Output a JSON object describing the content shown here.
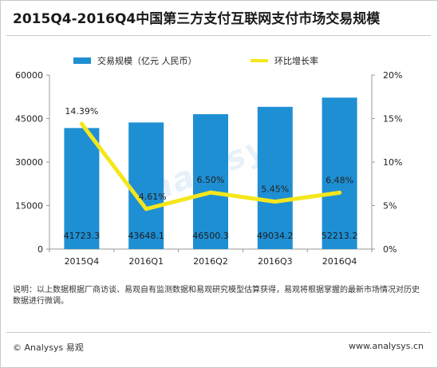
{
  "title": "2015Q4-2016Q4中国第三方支付互联网支付市场交易规模",
  "note": "说明：以上数据根据厂商访谈、易观自有监测数据和易观研究模型估算获得，易观将根据掌握的最新市场情况对历史数据进行微调。",
  "footer": {
    "left": "© Analysys 易观",
    "right": "www.analysys.cn"
  },
  "watermark": "Analysys",
  "colors": {
    "bar": "#1f8fd4",
    "line": "#f5e61c",
    "axis": "#999999",
    "text": "#222222"
  },
  "chart_data": {
    "type": "bar",
    "categories": [
      "2015Q4",
      "2016Q1",
      "2016Q2",
      "2016Q3",
      "2016Q4"
    ],
    "series": [
      {
        "name": "交易规模（亿元 人民币）",
        "type": "bar",
        "axis": "left",
        "values": [
          41723.3,
          43648.1,
          46500.3,
          49034.2,
          52213.2
        ],
        "labels": [
          "41723.3",
          "43648.1",
          "46500.3",
          "49034.2",
          "52213.2"
        ]
      },
      {
        "name": "环比增长率",
        "type": "line",
        "axis": "right",
        "values": [
          14.39,
          4.61,
          6.5,
          5.45,
          6.48
        ],
        "labels": [
          "14.39%",
          "4.61%",
          "6.50%",
          "5.45%",
          "6.48%"
        ]
      }
    ],
    "y_left": {
      "ylim": [
        0,
        60000
      ],
      "ticks": [
        0,
        15000,
        30000,
        45000,
        60000
      ],
      "tick_labels": [
        "0",
        "15000",
        "30000",
        "45000",
        "60000"
      ]
    },
    "y_right": {
      "ylim": [
        0,
        20
      ],
      "ticks": [
        0,
        5,
        10,
        15,
        20
      ],
      "tick_labels": [
        "0%",
        "5%",
        "10%",
        "15%",
        "20%"
      ]
    },
    "legend_position": "top-right",
    "grid": false
  }
}
